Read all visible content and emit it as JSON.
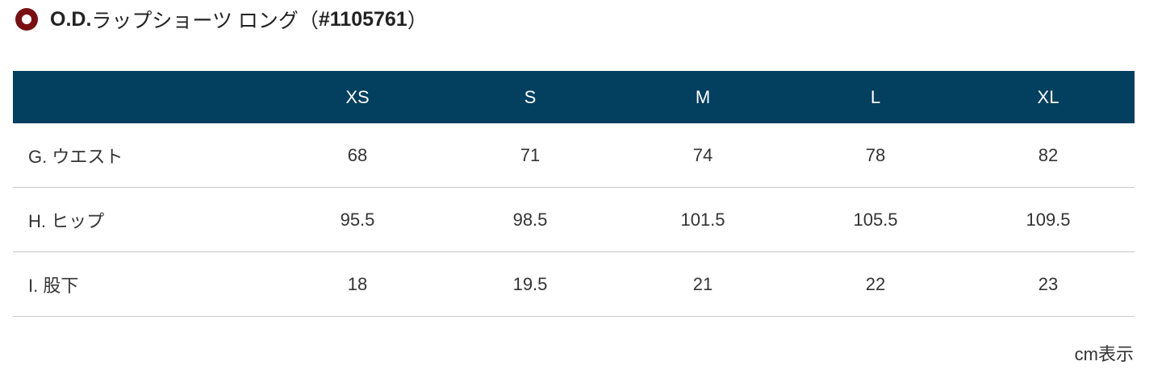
{
  "title": {
    "segments": [
      "O.D.",
      "ラップショーツ ロング（",
      "#1105761",
      "）"
    ]
  },
  "table": {
    "header": [
      "XS",
      "S",
      "M",
      "L",
      "XL"
    ],
    "rows": [
      [
        "G. ウエスト",
        68,
        71,
        74,
        78,
        82
      ],
      [
        "H. ヒップ",
        95.5,
        98.5,
        101.5,
        105.5,
        109.5
      ],
      [
        "I. 股下",
        18,
        19.5,
        21,
        22,
        23
      ]
    ]
  },
  "note": "cm表示"
}
